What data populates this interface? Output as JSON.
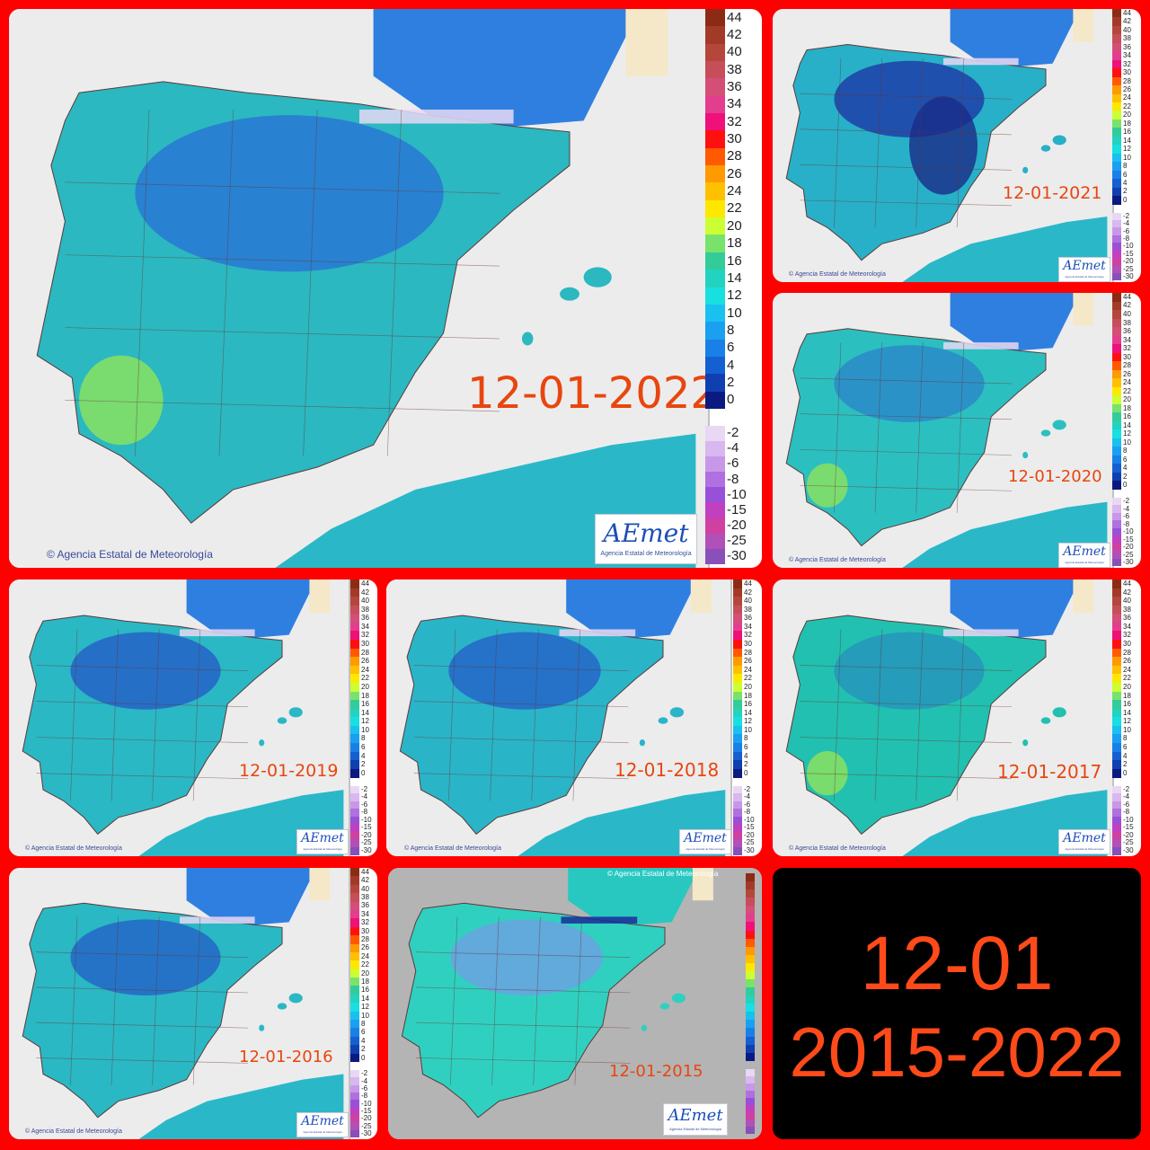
{
  "collage_title": {
    "line1": "12-01",
    "line2": "2015-2022"
  },
  "credit": "Agencia Estatal de Meteorología",
  "logo": {
    "text": "AEmet",
    "subtext": "Agencia Estatal de Meteorología"
  },
  "legend": {
    "positive": [
      "44",
      "42",
      "40",
      "38",
      "36",
      "34",
      "32",
      "30",
      "28",
      "26",
      "24",
      "22",
      "20",
      "18",
      "16",
      "14",
      "12",
      "10",
      "8",
      "6",
      "4",
      "2",
      "0"
    ],
    "negative": [
      "-2",
      "-4",
      "-6",
      "-8",
      "-10",
      "-15",
      "-20",
      "-25",
      "-30"
    ],
    "positive_colors": [
      "#8c2b14",
      "#a33a28",
      "#b5463c",
      "#c54e58",
      "#d44e78",
      "#e33e8e",
      "#f0107a",
      "#ff1010",
      "#ff5a00",
      "#ff9a00",
      "#ffc000",
      "#ffe800",
      "#ccff33",
      "#77e36b",
      "#33cc99",
      "#22d3c0",
      "#18e0e0",
      "#19c0f0",
      "#19a0f0",
      "#1980e8",
      "#1460d0",
      "#1040b0",
      "#0a1a80"
    ],
    "negative_colors": [
      "#e8d8f4",
      "#d8b8ee",
      "#c898e8",
      "#b070e0",
      "#9850d8",
      "#c040c0",
      "#d040a0",
      "#b050b8",
      "#8850b8"
    ]
  },
  "maps": [
    {
      "date": "12-01-2022",
      "palette": "cold",
      "fill": "#2bb8c0",
      "cold": "#2a6ad8"
    },
    {
      "date": "12-01-2021",
      "palette": "very-cold",
      "fill": "#28b0c8",
      "cold": "#1f40a8"
    },
    {
      "date": "12-01-2020",
      "palette": "mild",
      "fill": "#2cbfc0",
      "cold": "#2a5ad0"
    },
    {
      "date": "12-01-2019",
      "palette": "cold",
      "fill": "#2ab8c4",
      "cold": "#2550c8"
    },
    {
      "date": "12-01-2018",
      "palette": "cold",
      "fill": "#2ab4c8",
      "cold": "#2456c8"
    },
    {
      "date": "12-01-2017",
      "palette": "mild",
      "fill": "#22c0b0",
      "cold": "#2a70c8"
    },
    {
      "date": "12-01-2016",
      "palette": "cold",
      "fill": "#2ab8c4",
      "cold": "#2456c8"
    },
    {
      "date": "12-01-2015",
      "palette": "old",
      "fill": "#30d0c0",
      "cold": "#7898e8"
    }
  ]
}
